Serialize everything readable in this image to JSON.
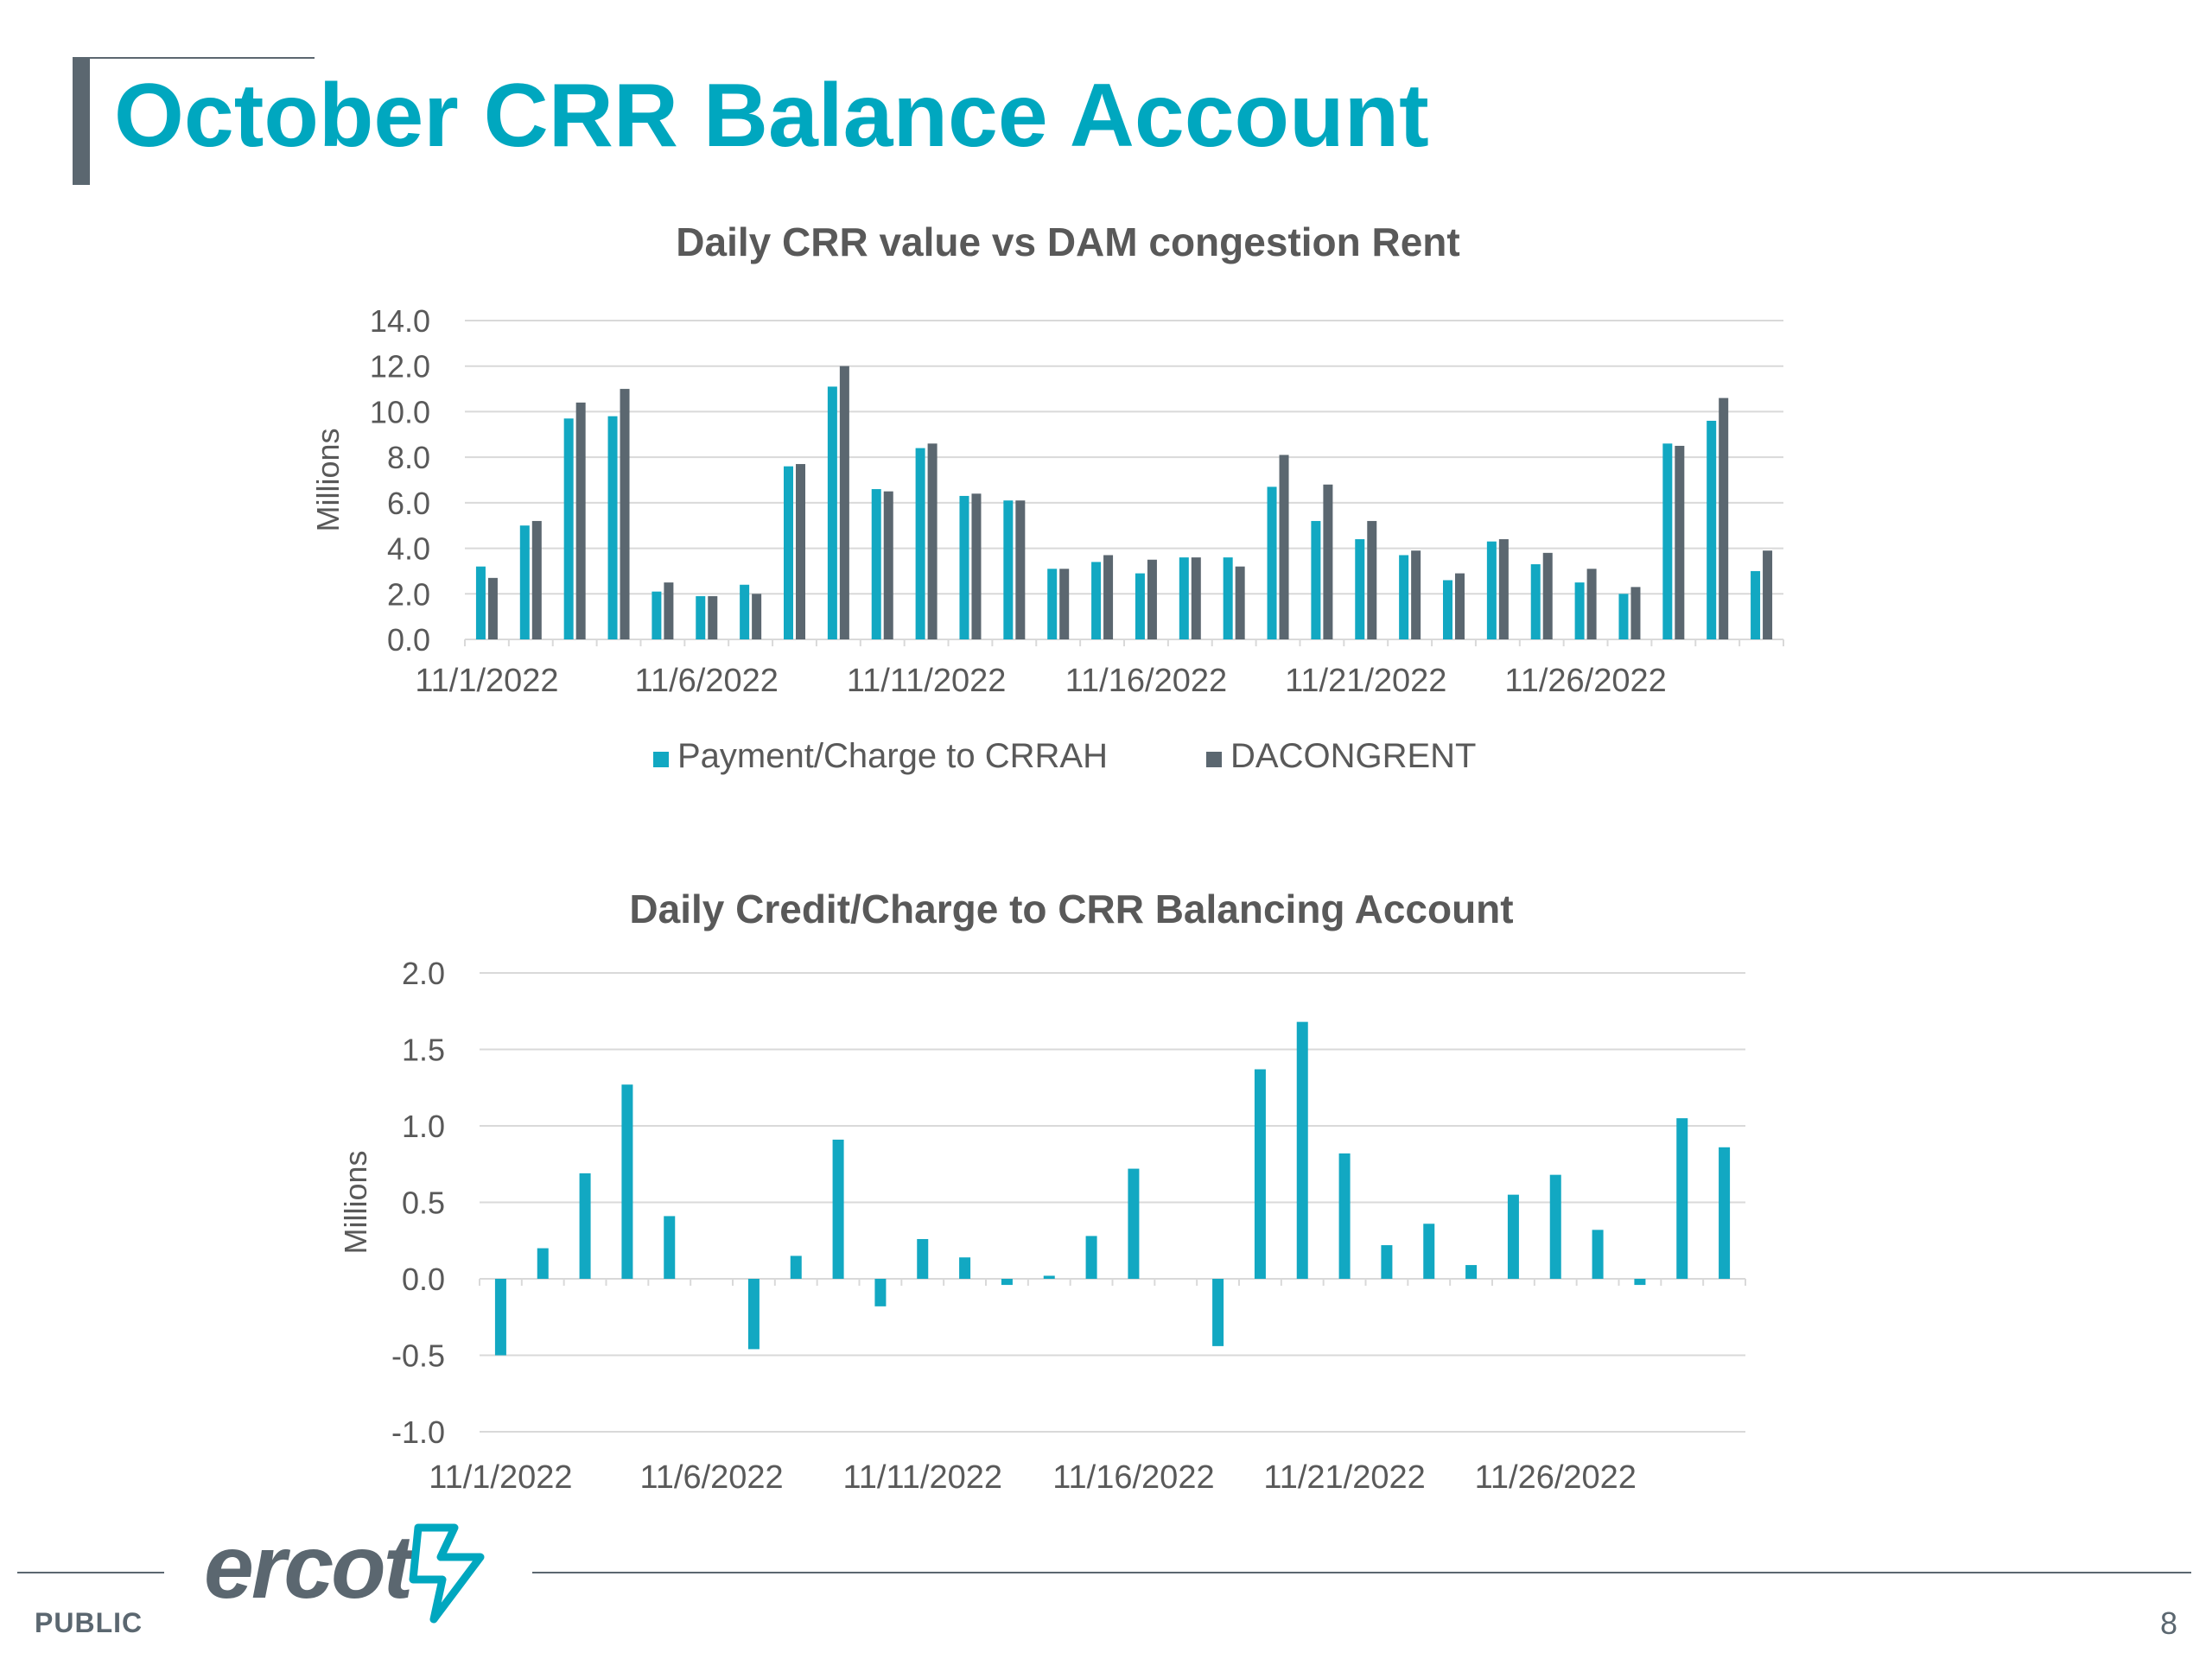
{
  "page": {
    "title": "October CRR Balance Account",
    "footer_label": "PUBLIC",
    "page_number": "8",
    "logo_text": "ercot",
    "logo_icon": "ercot-star-icon"
  },
  "colors": {
    "accent": "#00a7bf",
    "series1": "#12a8c2",
    "series2": "#5b6770",
    "grid": "#d9d9d9",
    "text": "#595959"
  },
  "chart_data": [
    {
      "type": "bar",
      "title": "Daily CRR value vs DAM congestion Rent",
      "ylabel": "Millions",
      "xlabel": "",
      "ylim": [
        0,
        14
      ],
      "yticks": [
        "0.0",
        "2.0",
        "4.0",
        "6.0",
        "8.0",
        "10.0",
        "12.0",
        "14.0"
      ],
      "grid": true,
      "legend": "bottom",
      "categories": [
        "11/1/2022",
        "11/2/2022",
        "11/3/2022",
        "11/4/2022",
        "11/5/2022",
        "11/6/2022",
        "11/7/2022",
        "11/8/2022",
        "11/9/2022",
        "11/10/2022",
        "11/11/2022",
        "11/12/2022",
        "11/13/2022",
        "11/14/2022",
        "11/15/2022",
        "11/16/2022",
        "11/17/2022",
        "11/18/2022",
        "11/19/2022",
        "11/20/2022",
        "11/21/2022",
        "11/22/2022",
        "11/23/2022",
        "11/24/2022",
        "11/25/2022",
        "11/26/2022",
        "11/27/2022",
        "11/28/2022",
        "11/29/2022",
        "11/30/2022"
      ],
      "xtick_labels": [
        "11/1/2022",
        "11/6/2022",
        "11/11/2022",
        "11/16/2022",
        "11/21/2022",
        "11/26/2022"
      ],
      "xtick_index": [
        0,
        5,
        10,
        15,
        20,
        25
      ],
      "series": [
        {
          "name": "Payment/Charge to CRRAH",
          "values": [
            3.2,
            5.0,
            9.7,
            9.8,
            2.1,
            1.9,
            2.4,
            7.6,
            11.1,
            6.6,
            8.4,
            6.3,
            6.1,
            3.1,
            3.4,
            2.9,
            3.6,
            3.6,
            6.7,
            5.2,
            4.4,
            3.7,
            2.6,
            4.3,
            3.3,
            2.5,
            2.0,
            8.6,
            9.6,
            3.0
          ]
        },
        {
          "name": "DACONGRENT",
          "values": [
            2.7,
            5.2,
            10.4,
            11.0,
            2.5,
            1.9,
            2.0,
            7.7,
            12.0,
            6.5,
            8.6,
            6.4,
            6.1,
            3.1,
            3.7,
            3.5,
            3.6,
            3.2,
            8.1,
            6.8,
            5.2,
            3.9,
            2.9,
            4.4,
            3.8,
            3.1,
            2.3,
            8.5,
            10.6,
            3.9
          ]
        }
      ]
    },
    {
      "type": "bar",
      "title": "Daily Credit/Charge to CRR Balancing Account",
      "ylabel": "Millions",
      "xlabel": "",
      "ylim": [
        -1.0,
        2.0
      ],
      "yticks": [
        "-1.0",
        "-0.5",
        "0.0",
        "0.5",
        "1.0",
        "1.5",
        "2.0"
      ],
      "grid": true,
      "legend": "none",
      "categories": [
        "11/1/2022",
        "11/2/2022",
        "11/3/2022",
        "11/4/2022",
        "11/5/2022",
        "11/6/2022",
        "11/7/2022",
        "11/8/2022",
        "11/9/2022",
        "11/10/2022",
        "11/11/2022",
        "11/12/2022",
        "11/13/2022",
        "11/14/2022",
        "11/15/2022",
        "11/16/2022",
        "11/17/2022",
        "11/18/2022",
        "11/19/2022",
        "11/20/2022",
        "11/21/2022",
        "11/22/2022",
        "11/23/2022",
        "11/24/2022",
        "11/25/2022",
        "11/26/2022",
        "11/27/2022",
        "11/28/2022",
        "11/29/2022",
        "11/30/2022"
      ],
      "xtick_labels": [
        "11/1/2022",
        "11/6/2022",
        "11/11/2022",
        "11/16/2022",
        "11/21/2022",
        "11/26/2022"
      ],
      "xtick_index": [
        0,
        5,
        10,
        15,
        20,
        25
      ],
      "series": [
        {
          "values": [
            -0.5,
            0.2,
            0.69,
            1.27,
            0.41,
            0.0,
            -0.46,
            0.15,
            0.91,
            -0.18,
            0.26,
            0.14,
            -0.04,
            0.02,
            0.28,
            0.72,
            0.0,
            -0.44,
            1.37,
            1.68,
            0.82,
            0.22,
            0.36,
            0.09,
            0.55,
            0.68,
            0.32,
            -0.04,
            1.05,
            0.86
          ]
        }
      ]
    }
  ]
}
